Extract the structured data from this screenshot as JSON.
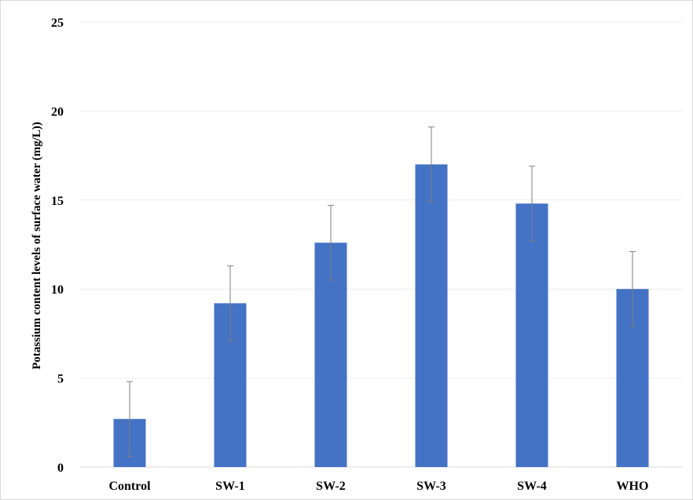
{
  "chart_data": {
    "type": "bar",
    "title": "",
    "xlabel": "",
    "ylabel": "Potassium content levels  of surface water (mg/L))",
    "categories": [
      "Control",
      "SW-1",
      "SW-2",
      "SW-3",
      "SW-4",
      "WHO"
    ],
    "values": [
      2.7,
      9.2,
      12.6,
      17.0,
      14.8,
      10.0
    ],
    "error_bars": [
      2.1,
      2.1,
      2.1,
      2.1,
      2.1,
      2.1
    ],
    "ylim": [
      0,
      25
    ],
    "yticks": [
      "0",
      "5",
      "10",
      "15",
      "20",
      "25"
    ],
    "grid": true,
    "legend": "none",
    "bar_color": "#4472c4",
    "error_bar_color": "#7f7f7f",
    "grid_color": "#eeeeee"
  }
}
